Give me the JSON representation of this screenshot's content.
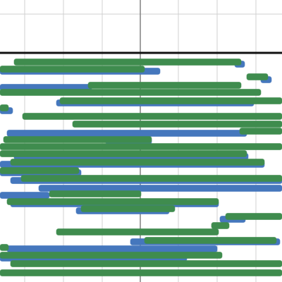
{
  "chart_data": {
    "type": "range",
    "xlim": [
      0,
      400
    ],
    "ylim": [
      0,
      400
    ],
    "xticks": [
      35,
      90,
      145,
      199,
      253,
      308,
      363
    ],
    "yticks": [
      20,
      75
    ],
    "axis_x": 199,
    "axis_y": 75,
    "grid": true,
    "series": [
      {
        "color": "#4577bd",
        "start": [
          333,
          0,
          370,
          0,
          80,
          0,
          10,
          150,
          20,
          0,
          0,
          15,
          55,
          0,
          15,
          108,
          312,
          185,
          10,
          0
        ],
        "end": [
          347,
          227,
          385,
          130,
          360,
          18,
          350,
          215,
          352,
          375,
          115,
          400,
          400,
          70,
          310,
          240,
          348,
          397,
          308,
          265
        ],
        "y": [
          91,
          101,
          113,
          124,
          146,
          157,
          189,
          200,
          222,
          233,
          245,
          256,
          267,
          277,
          289,
          299,
          311,
          343,
          353,
          366
        ]
      },
      {
        "color": "#3f8c4e",
        "start": [
          20,
          0,
          350,
          125,
          0,
          85,
          0,
          32,
          103,
          340,
          5,
          0,
          0,
          15,
          0,
          30,
          70,
          10,
          115,
          320,
          300,
          80,
          205,
          0,
          0,
          15,
          0
        ],
        "end": [
          342,
          205,
          380,
          342,
          370,
          400,
          12,
          400,
          400,
          400,
          215,
          400,
          350,
          375,
          112,
          400,
          200,
          310,
          248,
          400,
          325,
          310,
          392,
          12,
          315,
          400,
          400
        ],
        "y": [
          88,
          98,
          109,
          121,
          131,
          143,
          153,
          165,
          176,
          186,
          198,
          208,
          218,
          230,
          242,
          253,
          275,
          286,
          296,
          307,
          320,
          329,
          341,
          351,
          362,
          374,
          387
        ]
      }
    ]
  }
}
